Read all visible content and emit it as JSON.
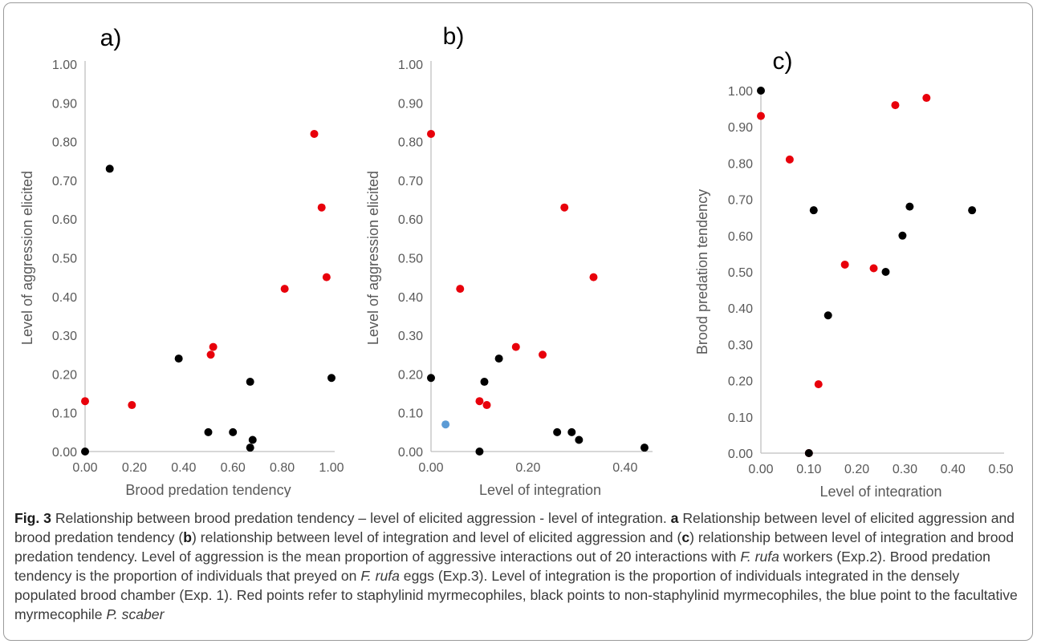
{
  "chart_data": [
    {
      "type": "scatter",
      "panel_label": "a)",
      "xlabel": "Brood predation tendency",
      "ylabel": "Level of aggression elicited",
      "xlim": [
        0,
        1.0
      ],
      "ylim": [
        0,
        1.0
      ],
      "xticks": [
        "0.00",
        "0.20",
        "0.40",
        "0.60",
        "0.80",
        "1.00"
      ],
      "yticks": [
        "0.00",
        "0.10",
        "0.20",
        "0.30",
        "0.40",
        "0.50",
        "0.60",
        "0.70",
        "0.80",
        "0.90",
        "1.00"
      ],
      "grid": false,
      "legend": "none",
      "series": [
        {
          "color": "#e8000b",
          "points": [
            [
              0.0,
              0.13
            ],
            [
              0.19,
              0.12
            ],
            [
              0.51,
              0.25
            ],
            [
              0.52,
              0.27
            ],
            [
              0.81,
              0.42
            ],
            [
              0.93,
              0.82
            ],
            [
              0.96,
              0.63
            ],
            [
              0.98,
              0.45
            ]
          ]
        },
        {
          "color": "#000000",
          "points": [
            [
              0.0,
              0.0
            ],
            [
              0.1,
              0.73
            ],
            [
              0.38,
              0.24
            ],
            [
              0.5,
              0.05
            ],
            [
              0.6,
              0.05
            ],
            [
              0.67,
              0.01
            ],
            [
              0.67,
              0.18
            ],
            [
              0.68,
              0.03
            ],
            [
              1.0,
              0.19
            ]
          ]
        }
      ]
    },
    {
      "type": "scatter",
      "panel_label": "b)",
      "xlabel": "Level of integration",
      "ylabel": "Level of aggression elicited",
      "xlim": [
        0,
        0.45
      ],
      "ylim": [
        0,
        1.0
      ],
      "xticks": [
        "0.00",
        "0.20",
        "0.40"
      ],
      "xtick_values": [
        0,
        0.2,
        0.4
      ],
      "yticks": [
        "0.00",
        "0.10",
        "0.20",
        "0.30",
        "0.40",
        "0.50",
        "0.60",
        "0.70",
        "0.80",
        "0.90",
        "1.00"
      ],
      "grid": false,
      "legend": "none",
      "series": [
        {
          "color": "#e8000b",
          "points": [
            [
              0.0,
              0.82
            ],
            [
              0.06,
              0.42
            ],
            [
              0.1,
              0.13
            ],
            [
              0.115,
              0.12
            ],
            [
              0.175,
              0.27
            ],
            [
              0.23,
              0.25
            ],
            [
              0.275,
              0.63
            ],
            [
              0.335,
              0.45
            ]
          ]
        },
        {
          "color": "#000000",
          "points": [
            [
              0.0,
              0.19
            ],
            [
              0.1,
              0.0
            ],
            [
              0.11,
              0.18
            ],
            [
              0.14,
              0.24
            ],
            [
              0.26,
              0.05
            ],
            [
              0.29,
              0.05
            ],
            [
              0.305,
              0.03
            ],
            [
              0.44,
              0.01
            ]
          ]
        },
        {
          "color": "#5b9bd5",
          "points": [
            [
              0.03,
              0.07
            ]
          ]
        }
      ]
    },
    {
      "type": "scatter",
      "panel_label": "c)",
      "xlabel": "Level of integration",
      "ylabel": "Brood predation tendency",
      "xlim": [
        0,
        0.5
      ],
      "ylim": [
        0,
        1.0
      ],
      "xticks": [
        "0.00",
        "0.10",
        "0.20",
        "0.30",
        "0.40",
        "0.50"
      ],
      "yticks": [
        "0.00",
        "0.10",
        "0.20",
        "0.30",
        "0.40",
        "0.50",
        "0.60",
        "0.70",
        "0.80",
        "0.90",
        "1.00"
      ],
      "grid": false,
      "legend": "none",
      "series": [
        {
          "color": "#e8000b",
          "points": [
            [
              0.0,
              0.93
            ],
            [
              0.06,
              0.81
            ],
            [
              0.1,
              0.0
            ],
            [
              0.12,
              0.19
            ],
            [
              0.175,
              0.52
            ],
            [
              0.235,
              0.51
            ],
            [
              0.28,
              0.96
            ],
            [
              0.345,
              0.98
            ]
          ]
        },
        {
          "color": "#000000",
          "points": [
            [
              0.0,
              1.0
            ],
            [
              0.1,
              0.0
            ],
            [
              0.11,
              0.67
            ],
            [
              0.14,
              0.38
            ],
            [
              0.26,
              0.5
            ],
            [
              0.295,
              0.6
            ],
            [
              0.31,
              0.68
            ],
            [
              0.44,
              0.67
            ]
          ]
        }
      ]
    }
  ],
  "caption": {
    "fig": "Fig. 3",
    "title": " Relationship between brood predation tendency – level of elicited aggression - level of integration. ",
    "a": "a",
    "t1": " Relationship between level of elicited aggression and brood predation tendency (",
    "b": "b",
    "t2": ") relationship between level of integration and level of elicited aggression and (",
    "c": "c",
    "t3": ") relationship between level of integration and brood predation tendency. Level of aggression is the mean proportion of aggressive interactions out of 20 interactions with ",
    "sp1": "F. rufa",
    "t4": " workers (Exp.2). Brood predation tendency is the proportion of individuals that preyed on ",
    "sp2": "F. rufa",
    "t5": " eggs (Exp.3). Level of integration is the proportion of individuals integrated in the densely populated brood chamber (Exp. 1). Red points refer to staphylinid myrmecophiles, black points to non-staphylinid myrmecophiles, the blue point to the facultative myrmecophile ",
    "sp3": "P. scaber"
  }
}
